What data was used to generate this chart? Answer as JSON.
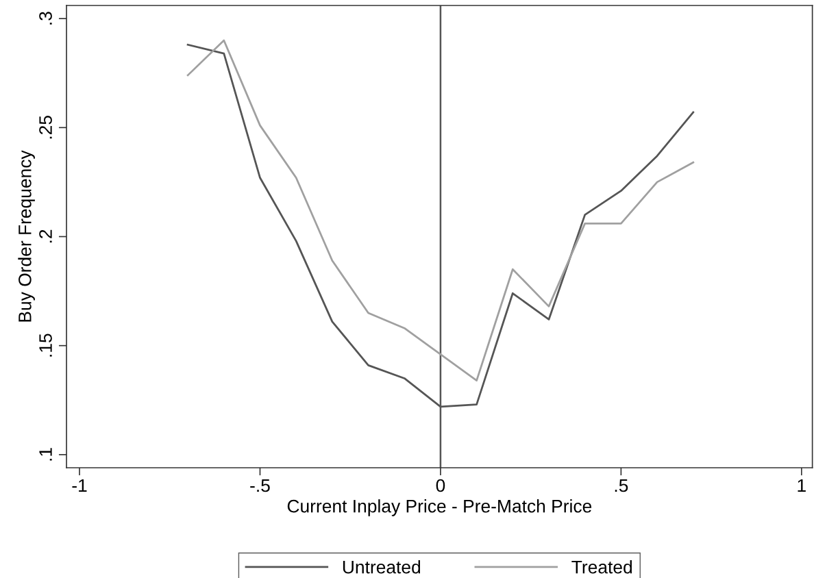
{
  "chart_data": {
    "type": "line",
    "xlabel": "Current Inplay Price - Pre-Match Price",
    "ylabel": "Buy Order Frequency",
    "x": [
      -0.7,
      -0.6,
      -0.5,
      -0.4,
      -0.3,
      -0.2,
      -0.1,
      0,
      0.1,
      0.2,
      0.3,
      0.4,
      0.5,
      0.6,
      0.7
    ],
    "series": [
      {
        "name": "Untreated",
        "color": "#555555",
        "values": [
          0.288,
          0.284,
          0.227,
          0.198,
          0.161,
          0.141,
          0.135,
          0.122,
          0.123,
          0.174,
          0.162,
          0.21,
          0.221,
          0.237,
          0.257
        ]
      },
      {
        "name": "Treated",
        "color": "#a0a0a0",
        "values": [
          0.274,
          0.29,
          0.251,
          0.227,
          0.189,
          0.165,
          0.158,
          0.146,
          0.134,
          0.185,
          0.168,
          0.206,
          0.206,
          0.225,
          0.234
        ]
      }
    ],
    "xlim": [
      -1.036,
      1.03
    ],
    "ylim": [
      0.094,
      0.306
    ],
    "xticks": [
      {
        "value": -1,
        "label": "-1"
      },
      {
        "value": -0.5,
        "label": "-.5"
      },
      {
        "value": 0,
        "label": "0"
      },
      {
        "value": 0.5,
        "label": ".5"
      },
      {
        "value": 1,
        "label": "1"
      }
    ],
    "yticks": [
      {
        "value": 0.1,
        "label": ".1"
      },
      {
        "value": 0.15,
        "label": ".15"
      },
      {
        "value": 0.2,
        "label": ".2"
      },
      {
        "value": 0.25,
        "label": ".25"
      },
      {
        "value": 0.3,
        "label": ".3"
      }
    ],
    "ref_lines": [
      {
        "axis": "x",
        "value": 0,
        "color": "#555555"
      }
    ],
    "grid": false,
    "legend": "bottom",
    "line_style": "solid",
    "marker": "none"
  }
}
